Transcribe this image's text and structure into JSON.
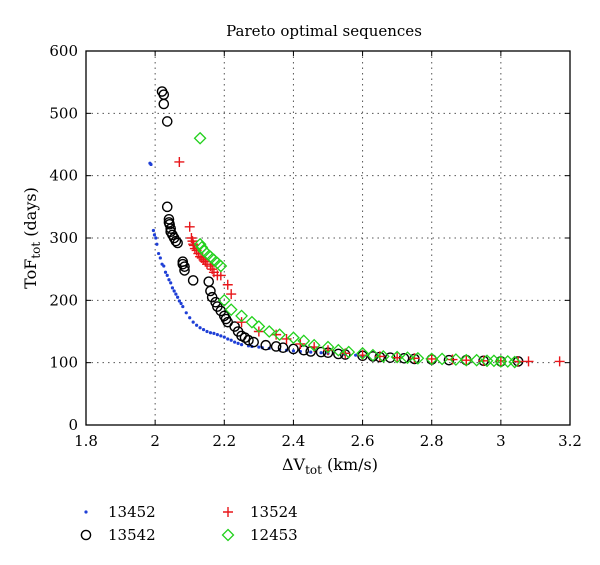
{
  "chart_data": {
    "type": "scatter",
    "title": "Pareto optimal sequences",
    "xlabel": {
      "main": "ΔV",
      "sub": "tot",
      "unit": " (km/s)"
    },
    "ylabel": {
      "main": "ToF",
      "sub": "tot",
      "unit": " (days)"
    },
    "xlim": [
      1.8,
      3.2
    ],
    "ylim": [
      0,
      600
    ],
    "x_ticks": [
      1.8,
      2,
      2.2,
      2.4,
      2.6,
      2.8,
      3,
      3.2
    ],
    "x_tick_labels": [
      "1.8",
      "2",
      "2.2",
      "2.4",
      "2.6",
      "2.8",
      "3",
      "3.2"
    ],
    "y_ticks": [
      0,
      100,
      200,
      300,
      400,
      500,
      600
    ],
    "y_tick_labels": [
      "0",
      "100",
      "200",
      "300",
      "400",
      "500",
      "600"
    ],
    "grid": true,
    "grid_style": "dotted",
    "legend_position": "bottom",
    "series": [
      {
        "name": "13452",
        "marker": "dot",
        "color": "#1f3fd6",
        "points": [
          [
            1.985,
            420
          ],
          [
            1.988,
            418
          ],
          [
            1.995,
            312
          ],
          [
            1.998,
            305
          ],
          [
            2.002,
            300
          ],
          [
            2.005,
            290
          ],
          [
            2.01,
            275
          ],
          [
            2.015,
            268
          ],
          [
            2.02,
            258
          ],
          [
            2.025,
            255
          ],
          [
            2.03,
            245
          ],
          [
            2.035,
            240
          ],
          [
            2.04,
            233
          ],
          [
            2.045,
            228
          ],
          [
            2.05,
            220
          ],
          [
            2.055,
            215
          ],
          [
            2.06,
            210
          ],
          [
            2.065,
            205
          ],
          [
            2.07,
            199
          ],
          [
            2.075,
            195
          ],
          [
            2.08,
            190
          ],
          [
            2.09,
            180
          ],
          [
            2.1,
            172
          ],
          [
            2.11,
            165
          ],
          [
            2.12,
            160
          ],
          [
            2.13,
            156
          ],
          [
            2.14,
            153
          ],
          [
            2.15,
            150
          ],
          [
            2.16,
            148
          ],
          [
            2.17,
            147
          ],
          [
            2.18,
            145
          ],
          [
            2.19,
            143
          ],
          [
            2.2,
            141
          ],
          [
            2.21,
            138
          ],
          [
            2.22,
            136
          ],
          [
            2.23,
            133
          ],
          [
            2.24,
            131
          ],
          [
            2.25,
            129
          ],
          [
            2.27,
            127
          ],
          [
            2.28,
            126
          ],
          [
            2.3,
            125
          ],
          [
            2.31,
            124
          ],
          [
            2.33,
            123
          ],
          [
            2.36,
            121
          ],
          [
            2.38,
            120
          ],
          [
            2.4,
            119
          ],
          [
            2.42,
            118
          ],
          [
            2.45,
            117
          ],
          [
            2.48,
            116
          ],
          [
            2.5,
            115
          ],
          [
            2.55,
            113
          ],
          [
            2.58,
            112
          ],
          [
            2.6,
            111
          ]
        ]
      },
      {
        "name": "13542",
        "marker": "circle",
        "color": "#000000",
        "points": [
          [
            2.02,
            535
          ],
          [
            2.025,
            530
          ],
          [
            2.025,
            515
          ],
          [
            2.035,
            487
          ],
          [
            2.035,
            350
          ],
          [
            2.04,
            330
          ],
          [
            2.04,
            325
          ],
          [
            2.042,
            322
          ],
          [
            2.045,
            315
          ],
          [
            2.045,
            310
          ],
          [
            2.05,
            305
          ],
          [
            2.055,
            300
          ],
          [
            2.06,
            295
          ],
          [
            2.065,
            292
          ],
          [
            2.08,
            262
          ],
          [
            2.08,
            258
          ],
          [
            2.085,
            254
          ],
          [
            2.085,
            248
          ],
          [
            2.11,
            232
          ],
          [
            2.155,
            230
          ],
          [
            2.16,
            215
          ],
          [
            2.165,
            205
          ],
          [
            2.175,
            197
          ],
          [
            2.18,
            190
          ],
          [
            2.19,
            183
          ],
          [
            2.2,
            175
          ],
          [
            2.205,
            170
          ],
          [
            2.21,
            165
          ],
          [
            2.23,
            158
          ],
          [
            2.24,
            150
          ],
          [
            2.25,
            143
          ],
          [
            2.26,
            140
          ],
          [
            2.27,
            136
          ],
          [
            2.285,
            133
          ],
          [
            2.32,
            128
          ],
          [
            2.35,
            126
          ],
          [
            2.37,
            124
          ],
          [
            2.4,
            122
          ],
          [
            2.43,
            120
          ],
          [
            2.45,
            118
          ],
          [
            2.48,
            117
          ],
          [
            2.5,
            116
          ],
          [
            2.53,
            114
          ],
          [
            2.55,
            113
          ],
          [
            2.6,
            111
          ],
          [
            2.63,
            110
          ],
          [
            2.65,
            109
          ],
          [
            2.68,
            108
          ],
          [
            2.72,
            107
          ],
          [
            2.75,
            106
          ],
          [
            2.8,
            105
          ],
          [
            2.85,
            104
          ],
          [
            2.9,
            104
          ],
          [
            2.95,
            103
          ],
          [
            3.0,
            102
          ],
          [
            3.05,
            102
          ]
        ]
      },
      {
        "name": "13524",
        "marker": "plus",
        "color": "#e8161a",
        "points": [
          [
            2.07,
            422
          ],
          [
            2.1,
            318
          ],
          [
            2.105,
            300
          ],
          [
            2.108,
            295
          ],
          [
            2.11,
            290
          ],
          [
            2.112,
            288
          ],
          [
            2.115,
            283
          ],
          [
            2.12,
            280
          ],
          [
            2.125,
            275
          ],
          [
            2.13,
            270
          ],
          [
            2.135,
            268
          ],
          [
            2.14,
            265
          ],
          [
            2.145,
            262
          ],
          [
            2.15,
            258
          ],
          [
            2.16,
            255
          ],
          [
            2.165,
            250
          ],
          [
            2.17,
            245
          ],
          [
            2.18,
            240
          ],
          [
            2.19,
            240
          ],
          [
            2.21,
            225
          ],
          [
            2.22,
            210
          ],
          [
            2.25,
            165
          ],
          [
            2.3,
            150
          ],
          [
            2.35,
            145
          ],
          [
            2.38,
            138
          ],
          [
            2.42,
            130
          ],
          [
            2.46,
            125
          ],
          [
            2.5,
            120
          ],
          [
            2.55,
            115
          ],
          [
            2.6,
            112
          ],
          [
            2.65,
            110
          ],
          [
            2.7,
            108
          ],
          [
            2.75,
            107
          ],
          [
            2.8,
            106
          ],
          [
            2.86,
            105
          ],
          [
            2.9,
            104
          ],
          [
            2.95,
            103
          ],
          [
            3.0,
            103
          ],
          [
            3.05,
            102
          ],
          [
            3.08,
            102
          ],
          [
            3.17,
            102
          ]
        ]
      },
      {
        "name": "12453",
        "marker": "diamond",
        "color": "#22d11c",
        "points": [
          [
            2.13,
            460
          ],
          [
            2.13,
            290
          ],
          [
            2.135,
            285
          ],
          [
            2.14,
            280
          ],
          [
            2.15,
            275
          ],
          [
            2.16,
            270
          ],
          [
            2.17,
            265
          ],
          [
            2.18,
            260
          ],
          [
            2.19,
            255
          ],
          [
            2.2,
            200
          ],
          [
            2.22,
            185
          ],
          [
            2.25,
            175
          ],
          [
            2.28,
            165
          ],
          [
            2.3,
            158
          ],
          [
            2.33,
            150
          ],
          [
            2.36,
            145
          ],
          [
            2.4,
            140
          ],
          [
            2.43,
            135
          ],
          [
            2.46,
            128
          ],
          [
            2.5,
            125
          ],
          [
            2.53,
            120
          ],
          [
            2.56,
            117
          ],
          [
            2.6,
            115
          ],
          [
            2.63,
            112
          ],
          [
            2.66,
            110
          ],
          [
            2.7,
            109
          ],
          [
            2.73,
            108
          ],
          [
            2.76,
            107
          ],
          [
            2.8,
            106
          ],
          [
            2.83,
            106
          ],
          [
            2.87,
            105
          ],
          [
            2.9,
            104
          ],
          [
            2.93,
            104
          ],
          [
            2.96,
            103
          ],
          [
            2.98,
            103
          ],
          [
            3.0,
            102
          ],
          [
            3.02,
            102
          ],
          [
            3.04,
            101
          ]
        ]
      }
    ]
  }
}
